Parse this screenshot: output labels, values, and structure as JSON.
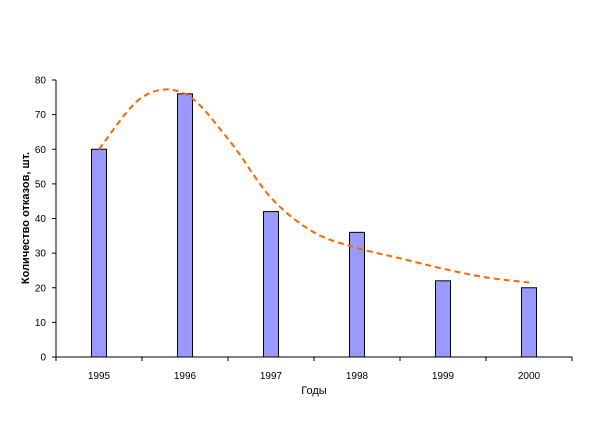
{
  "chart_data": {
    "type": "bar",
    "categories": [
      "1995",
      "1996",
      "1997",
      "1998",
      "1999",
      "2000"
    ],
    "values": [
      60,
      76,
      42,
      36,
      22,
      20
    ],
    "trend": {
      "style": "dashed-curve",
      "x": [
        1995,
        1995.5,
        1996,
        1996.5,
        1997,
        1997.5,
        1998,
        1998.5,
        1999,
        1999.5,
        2000
      ],
      "y": [
        60,
        75,
        76,
        63,
        46,
        36,
        31.5,
        28.5,
        25.5,
        23,
        21.5
      ]
    },
    "title": "",
    "xlabel": "Годы",
    "ylabel": "Количество отказов, шт.",
    "ylim": [
      0,
      80
    ],
    "yticks": [
      "0",
      "10",
      "20",
      "30",
      "40",
      "50",
      "60",
      "70",
      "80"
    ],
    "grid": false,
    "legend": "none",
    "colors": {
      "bar_fill": "#9999ff",
      "bar_stroke": "#000000",
      "trend": "#ff6600"
    }
  }
}
